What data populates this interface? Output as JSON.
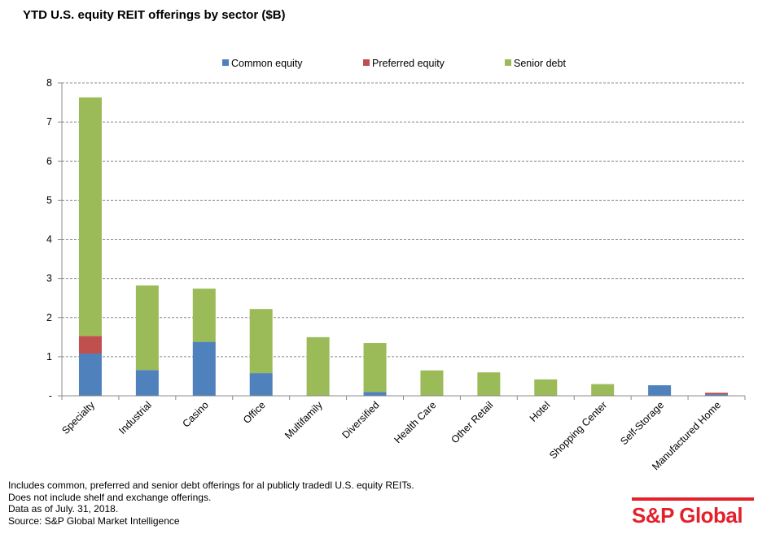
{
  "chart_data": {
    "type": "bar",
    "stacked": true,
    "title": "YTD U.S. equity REIT offerings by sector ($B)",
    "categories": [
      "Specialty",
      "Industrial",
      "Casino",
      "Office",
      "Multifamily",
      "Diversified",
      "Health Care",
      "Other Retail",
      "Hotel",
      "Shopping Center",
      "Self-Storage",
      "Manufactured Home"
    ],
    "series": [
      {
        "name": "Common equity",
        "color": "#4f81bd",
        "values": [
          1.08,
          0.66,
          1.38,
          0.58,
          0,
          0.1,
          0,
          0,
          0,
          0,
          0.27,
          0.04
        ]
      },
      {
        "name": "Preferred equity",
        "color": "#c0504d",
        "values": [
          0.45,
          0,
          0,
          0,
          0,
          0,
          0,
          0,
          0,
          0,
          0,
          0.04
        ]
      },
      {
        "name": "Senior debt",
        "color": "#9bbb59",
        "values": [
          6.1,
          2.16,
          1.36,
          1.64,
          1.5,
          1.25,
          0.65,
          0.6,
          0.42,
          0.3,
          0,
          0
        ]
      }
    ],
    "ylim": [
      0,
      8
    ],
    "yticks": [
      "-",
      "1",
      "2",
      "3",
      "4",
      "5",
      "6",
      "7",
      "8"
    ],
    "grid": true,
    "legend_position": "top"
  },
  "footnotes": [
    "Includes common, preferred and senior debt offerings for al publicly tradedl U.S. equity REITs.",
    "Does not include shelf and exchange offerings.",
    "Data as of July. 31, 2018.",
    "Source: S&P Global Market Intelligence"
  ],
  "brand": {
    "text": "S&P Global",
    "color": "#e4202b"
  }
}
